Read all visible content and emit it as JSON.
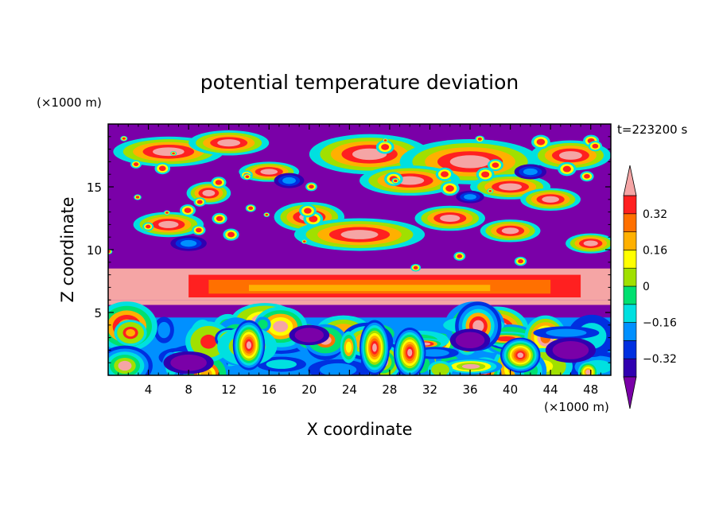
{
  "chart_data": {
    "type": "heatmap",
    "title": "potential temperature deviation",
    "xlabel": "X coordinate",
    "ylabel": "Z coordinate",
    "x_unit": "(×1000 m)",
    "y_unit": "(×1000 m)",
    "time_label": "t=223200 s",
    "xlim": [
      0,
      50
    ],
    "ylim": [
      0,
      20
    ],
    "x_ticks": [
      4,
      8,
      12,
      16,
      20,
      24,
      28,
      32,
      36,
      40,
      44,
      48
    ],
    "y_ticks": [
      5,
      10,
      15
    ],
    "colorbar": {
      "levels": [
        -0.4,
        -0.32,
        -0.24,
        -0.16,
        -0.08,
        0,
        0.08,
        0.16,
        0.24,
        0.32,
        0.4
      ],
      "labeled_ticks": [
        "0.32",
        "0.16",
        "0",
        "−0.16",
        "−0.32"
      ],
      "labeled_values": [
        0.32,
        0.16,
        0,
        -0.16,
        -0.32
      ],
      "colors": [
        "#7a00a8",
        "#3000b0",
        "#0030e0",
        "#0090ff",
        "#00e0e0",
        "#00e070",
        "#a0e000",
        "#ffff00",
        "#ffb000",
        "#ff7000",
        "#ff2020",
        "#f5a5a5"
      ],
      "extend": "both"
    },
    "fields": {
      "deep_negative_value": -0.45,
      "positive_band_center_z": 7.2,
      "surface_layer_top_z": 5.5
    }
  }
}
